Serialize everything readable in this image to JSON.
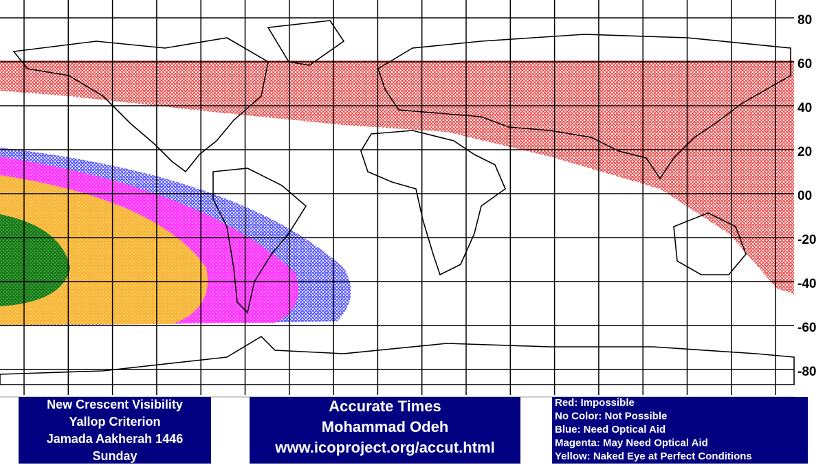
{
  "latitude_labels": [
    80,
    60,
    40,
    20,
    {
      "value": 0,
      "label": "00"
    },
    -20,
    -40,
    -60,
    -80
  ],
  "info_box": {
    "lines": [
      "New Crescent Visibility",
      "Yallop Criterion",
      "Jamada Aakherah 1446",
      "Sunday"
    ]
  },
  "credit_box": {
    "lines": [
      "Accurate Times",
      "Mohammad Odeh",
      "www.icoproject.org/accut.html"
    ]
  },
  "legend": {
    "lines": [
      "Red: Impossible",
      "No Color: Not Possible",
      "Blue: Need Optical Aid",
      "Magenta: May Need Optical Aid",
      "Yellow: Naked Eye at Perfect Conditions"
    ]
  }
}
